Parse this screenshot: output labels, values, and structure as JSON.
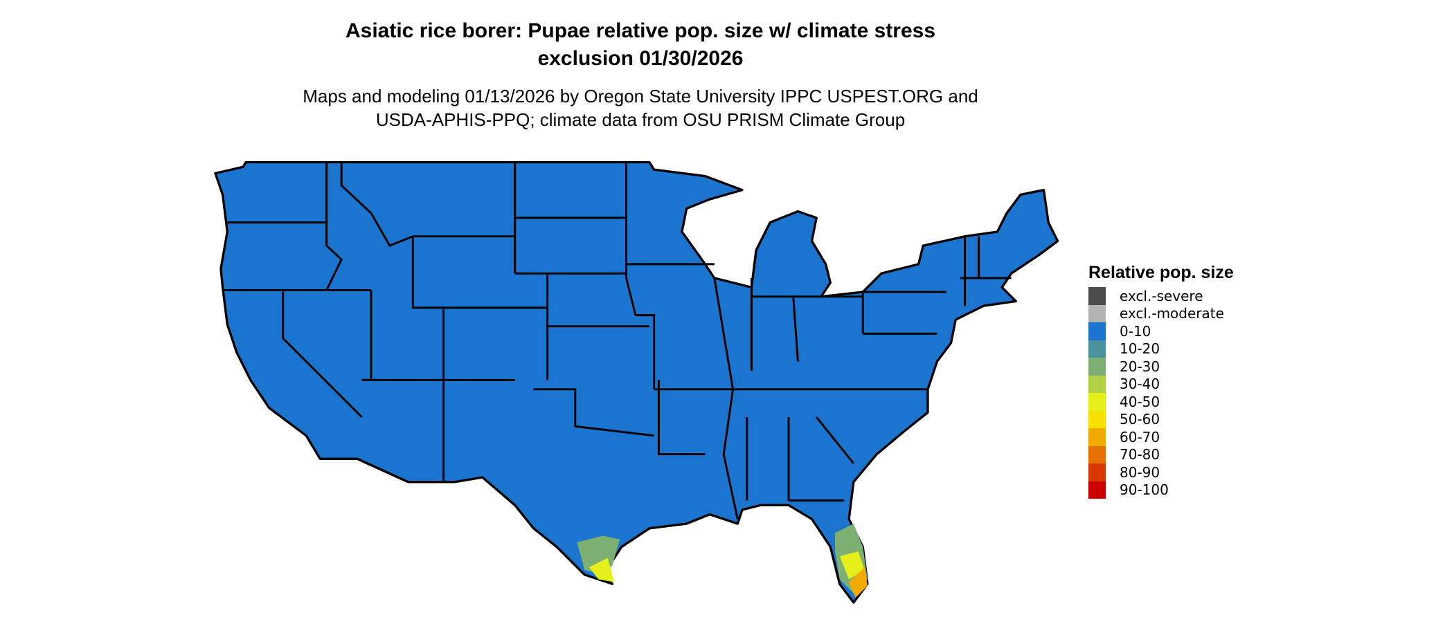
{
  "title_line1": "Asiatic rice borer: Pupae relative pop. size w/ climate stress",
  "title_line2": "exclusion 01/30/2026",
  "subtitle_line1": "Maps and modeling 01/13/2026 by Oregon State University IPPC USPEST.ORG and",
  "subtitle_line2": "USDA-APHIS-PPQ; climate data from OSU PRISM Climate Group",
  "legend": {
    "title": "Relative pop. size",
    "items": [
      {
        "label": "excl.-severe",
        "color": "#4d4d4d"
      },
      {
        "label": "excl.-moderate",
        "color": "#b3b3b3"
      },
      {
        "label": "0-10",
        "color": "#1b74cd"
      },
      {
        "label": "10-20",
        "color": "#4a919e"
      },
      {
        "label": "20-30",
        "color": "#7daf72"
      },
      {
        "label": "30-40",
        "color": "#b3d146"
      },
      {
        "label": "40-50",
        "color": "#e5f01a"
      },
      {
        "label": "50-60",
        "color": "#f8e000"
      },
      {
        "label": "60-70",
        "color": "#f0aa00"
      },
      {
        "label": "70-80",
        "color": "#e57200"
      },
      {
        "label": "80-90",
        "color": "#d93800"
      },
      {
        "label": "90-100",
        "color": "#cc0000"
      }
    ]
  }
}
